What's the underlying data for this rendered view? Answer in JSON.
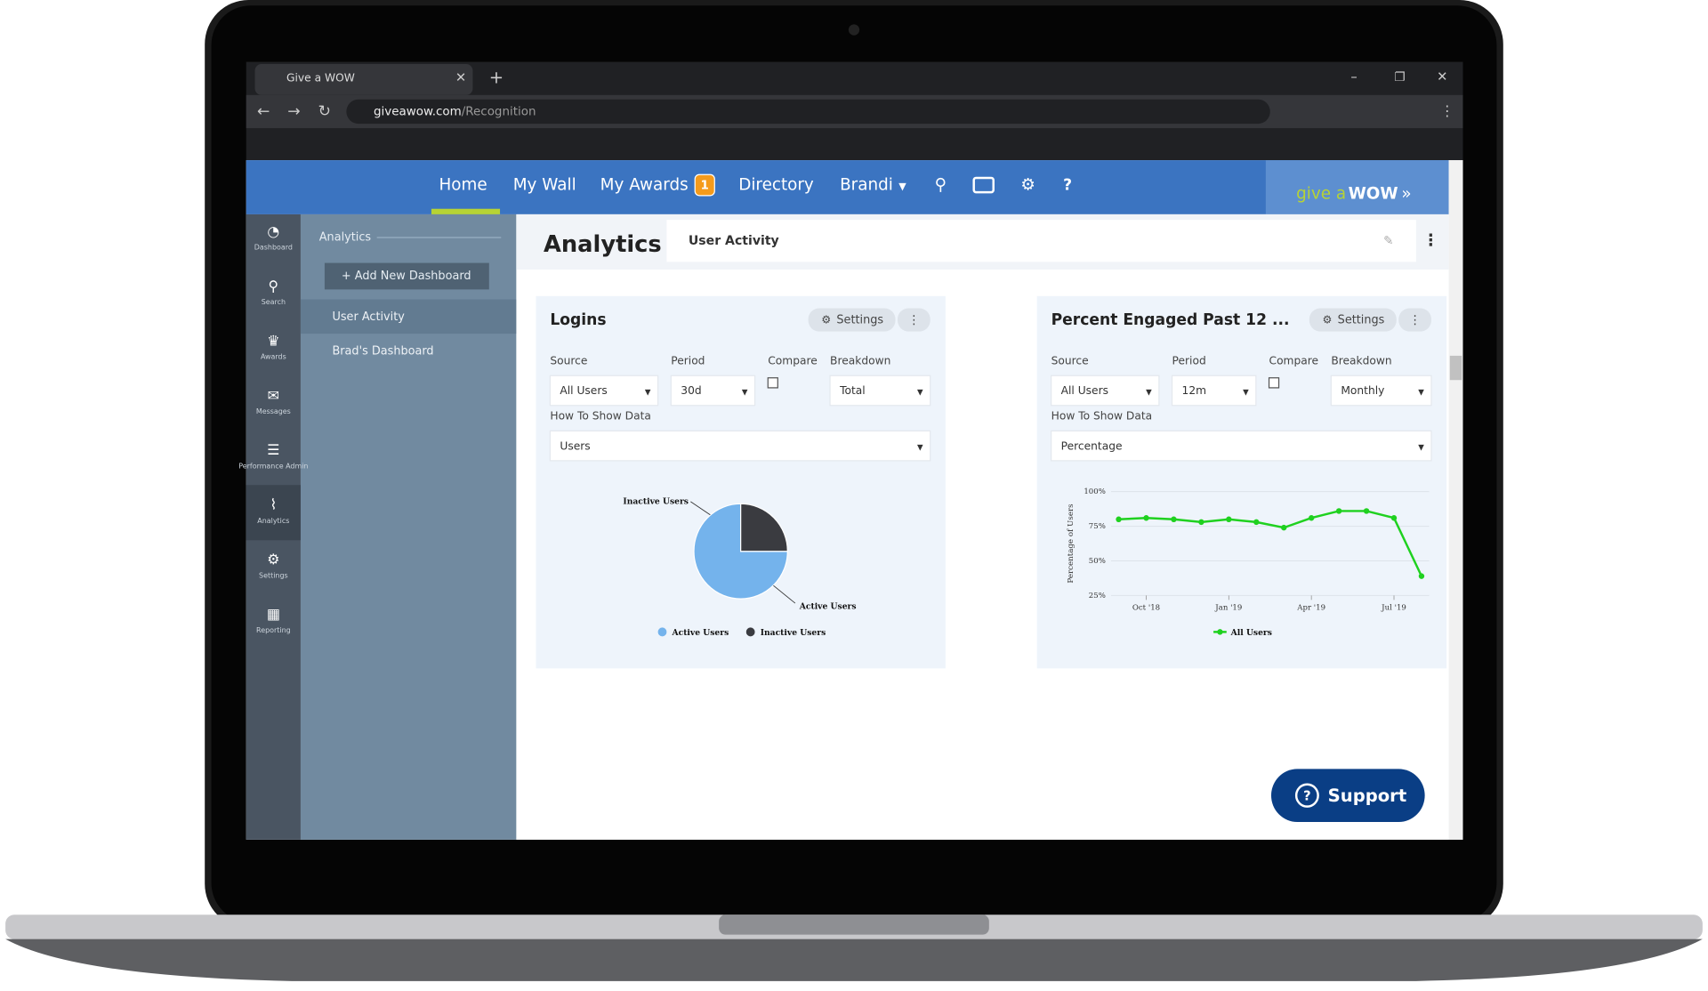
{
  "browser": {
    "tab_title": "Give a WOW",
    "url_host": "giveawow.com",
    "url_path": "/Recognition"
  },
  "nav": {
    "items": [
      "Home",
      "My Wall",
      "My Awards",
      "Directory",
      "Brandi"
    ],
    "awards_badge": 1,
    "logo_prefix": "give a",
    "logo_main": "WOW"
  },
  "sidebar": {
    "icons": [
      "Dashboard",
      "Search",
      "Awards",
      "Messages",
      "Performance Admin",
      "Analytics",
      "Settings",
      "Reporting"
    ],
    "section": "Analytics",
    "add_button": "+ Add New Dashboard",
    "dashboards": [
      "User Activity",
      "Brad's Dashboard"
    ]
  },
  "page": {
    "title": "Analytics",
    "tab": "User Activity"
  },
  "widgets": [
    {
      "title": "Logins",
      "settings": "Settings",
      "source_label": "Source",
      "source": "All Users",
      "period_label": "Period",
      "period": "30d",
      "compare_label": "Compare",
      "breakdown_label": "Breakdown",
      "breakdown": "Total",
      "show_label": "How To Show Data",
      "show": "Users"
    },
    {
      "title": "Percent Engaged Past 12 ...",
      "settings": "Settings",
      "source_label": "Source",
      "source": "All Users",
      "period_label": "Period",
      "period": "12m",
      "compare_label": "Compare",
      "breakdown_label": "Breakdown",
      "breakdown": "Monthly",
      "show_label": "How To Show Data",
      "show": "Percentage"
    }
  ],
  "support": "Support",
  "chart_data": [
    {
      "type": "pie",
      "categories": [
        "Active Users",
        "Inactive Users"
      ],
      "values": [
        75,
        25
      ],
      "colors": [
        "#74b3ec",
        "#3a3b40"
      ]
    },
    {
      "type": "line",
      "y_label": "Percentage of Users",
      "categories": [
        null,
        "Oct '18",
        null,
        null,
        "Jan '19",
        null,
        null,
        "Apr '19",
        null,
        null,
        "Jul '19",
        null
      ],
      "series": [
        {
          "name": "All Users",
          "color": "#1fd11f",
          "values": [
            80,
            81,
            80,
            78,
            80,
            78,
            74,
            81,
            86,
            86,
            81,
            39
          ]
        }
      ],
      "ylim": [
        25,
        100
      ],
      "yticks": [
        {
          "value": 25,
          "label": "25%"
        },
        {
          "value": 50,
          "label": "50%"
        },
        {
          "value": 75,
          "label": "75%"
        },
        {
          "value": 100,
          "label": "100%"
        }
      ],
      "grid": true
    }
  ]
}
